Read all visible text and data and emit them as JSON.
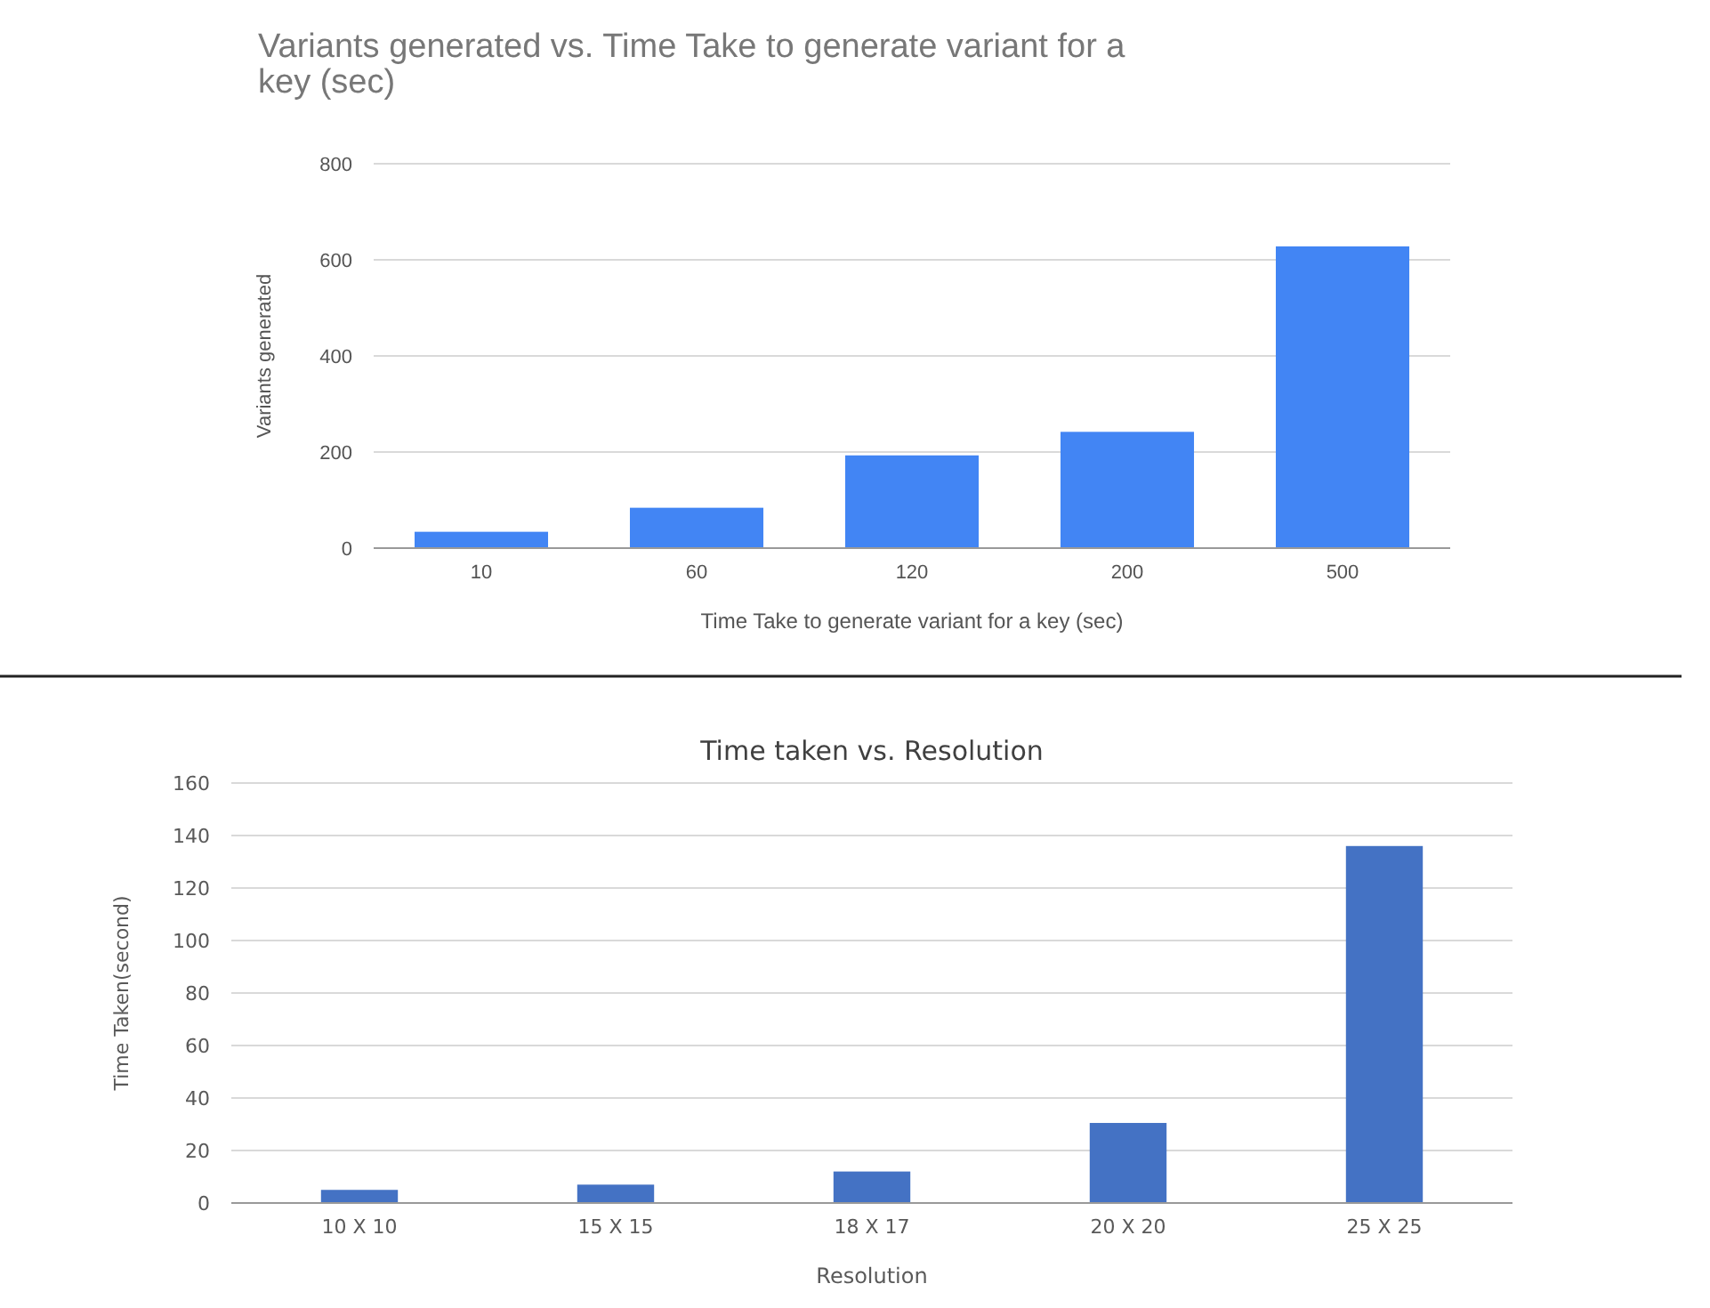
{
  "chart_data": [
    {
      "type": "bar",
      "title": "Variants generated  vs. Time Take to generate variant for a key (sec)",
      "xlabel": "Time Take to generate variant for a key (sec)",
      "ylabel": "Variants generated",
      "categories": [
        "10",
        "60",
        "120",
        "200",
        "500"
      ],
      "values": [
        34,
        84,
        193,
        242,
        628
      ],
      "color": "#4285f4",
      "ylim": [
        0,
        800
      ],
      "yticks": [
        0,
        200,
        400,
        600,
        800
      ],
      "grid": "y"
    },
    {
      "type": "bar",
      "title": "Time taken vs. Resolution",
      "xlabel": "Resolution",
      "ylabel": "Time Taken(second)",
      "categories": [
        "10 X 10",
        "15 X 15",
        "18 X 17",
        "20 X 20",
        "25 X 25"
      ],
      "values": [
        5,
        7,
        12,
        30.5,
        136
      ],
      "color": "#4472c4",
      "ylim": [
        0,
        160
      ],
      "yticks": [
        0,
        20,
        40,
        60,
        80,
        100,
        120,
        140,
        160
      ],
      "grid": "y"
    }
  ]
}
